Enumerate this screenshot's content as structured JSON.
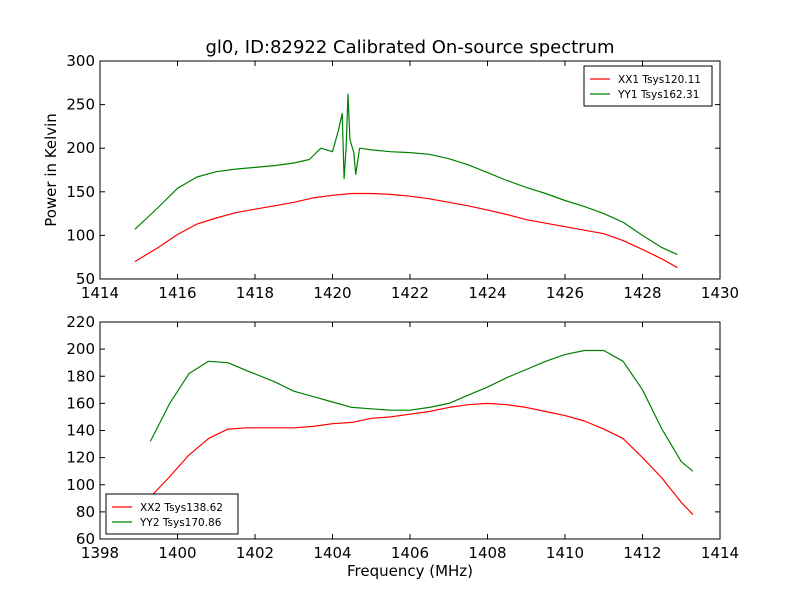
{
  "figure": {
    "title": "gl0, ID:82922 Calibrated On-source spectrum"
  },
  "chart_data": [
    {
      "type": "line",
      "title": "gl0, ID:82922 Calibrated On-source spectrum",
      "xlabel": "",
      "ylabel": "Power in Kelvin",
      "xlim": [
        1414,
        1430
      ],
      "ylim": [
        50,
        300
      ],
      "xticks": [
        1414,
        1416,
        1418,
        1420,
        1422,
        1424,
        1426,
        1428,
        1430
      ],
      "yticks": [
        50,
        100,
        150,
        200,
        250,
        300
      ],
      "legend_position": "top-right",
      "grid": false,
      "series": [
        {
          "name": "XX1 Tsys120.11",
          "color": "#ff0000",
          "x": [
            1414.9,
            1415.5,
            1416.0,
            1416.5,
            1417.0,
            1417.5,
            1418.0,
            1418.5,
            1419.0,
            1419.5,
            1420.0,
            1420.5,
            1421.0,
            1421.5,
            1422.0,
            1422.5,
            1423.0,
            1423.5,
            1424.0,
            1424.5,
            1425.0,
            1425.5,
            1426.0,
            1426.5,
            1427.0,
            1427.5,
            1428.0,
            1428.5,
            1428.9
          ],
          "y": [
            70,
            86,
            101,
            113,
            120,
            126,
            130,
            134,
            138,
            143,
            146,
            148,
            148,
            147,
            145,
            142,
            138,
            134,
            129,
            124,
            118,
            114,
            110,
            106,
            102,
            94,
            84,
            73,
            63
          ]
        },
        {
          "name": "YY1 Tsys162.31",
          "color": "#008000",
          "x": [
            1414.9,
            1415.5,
            1416.0,
            1416.5,
            1417.0,
            1417.5,
            1418.0,
            1418.5,
            1419.0,
            1419.4,
            1419.7,
            1420.0,
            1420.15,
            1420.25,
            1420.3,
            1420.35,
            1420.4,
            1420.45,
            1420.55,
            1420.6,
            1420.7,
            1421.0,
            1421.5,
            1422.0,
            1422.5,
            1423.0,
            1423.5,
            1424.0,
            1424.5,
            1425.0,
            1425.5,
            1426.0,
            1426.5,
            1427.0,
            1427.5,
            1428.0,
            1428.5,
            1428.9
          ],
          "y": [
            107,
            132,
            154,
            167,
            173,
            176,
            178,
            180,
            183,
            187,
            200,
            196,
            220,
            240,
            165,
            200,
            262,
            210,
            195,
            170,
            200,
            198,
            196,
            195,
            193,
            188,
            181,
            172,
            163,
            155,
            148,
            140,
            133,
            125,
            115,
            100,
            86,
            78
          ]
        }
      ]
    },
    {
      "type": "line",
      "title": "",
      "xlabel": "Frequency (MHz)",
      "ylabel": "",
      "xlim": [
        1398,
        1414
      ],
      "ylim": [
        60,
        220
      ],
      "xticks": [
        1398,
        1400,
        1402,
        1404,
        1406,
        1408,
        1410,
        1412,
        1414
      ],
      "yticks": [
        60,
        80,
        100,
        120,
        140,
        160,
        180,
        200,
        220
      ],
      "legend_position": "bottom-left",
      "grid": false,
      "series": [
        {
          "name": "XX2 Tsys138.62",
          "color": "#ff0000",
          "x": [
            1399.3,
            1399.8,
            1400.3,
            1400.8,
            1401.3,
            1401.8,
            1402.5,
            1403.0,
            1403.5,
            1404.0,
            1404.5,
            1405.0,
            1405.5,
            1406.0,
            1406.5,
            1407.0,
            1407.5,
            1408.0,
            1408.5,
            1409.0,
            1409.5,
            1410.0,
            1410.5,
            1411.0,
            1411.5,
            1412.0,
            1412.5,
            1413.0,
            1413.3
          ],
          "y": [
            91,
            106,
            122,
            134,
            141,
            142,
            142,
            142,
            143,
            145,
            146,
            149,
            150,
            152,
            154,
            157,
            159,
            160,
            159,
            157,
            154,
            151,
            147,
            141,
            134,
            120,
            105,
            87,
            78
          ]
        },
        {
          "name": "YY2 Tsys170.86",
          "color": "#008000",
          "x": [
            1399.3,
            1399.8,
            1400.3,
            1400.8,
            1401.3,
            1401.8,
            1402.5,
            1403.0,
            1403.5,
            1404.0,
            1404.5,
            1405.0,
            1405.5,
            1406.0,
            1406.5,
            1407.0,
            1407.5,
            1408.0,
            1408.5,
            1409.0,
            1409.5,
            1410.0,
            1410.5,
            1411.0,
            1411.5,
            1412.0,
            1412.5,
            1413.0,
            1413.3
          ],
          "y": [
            132,
            160,
            182,
            191,
            190,
            184,
            176,
            169,
            165,
            161,
            157,
            156,
            155,
            155,
            157,
            160,
            166,
            172,
            179,
            185,
            191,
            196,
            199,
            199,
            191,
            170,
            141,
            117,
            110
          ]
        }
      ]
    }
  ]
}
